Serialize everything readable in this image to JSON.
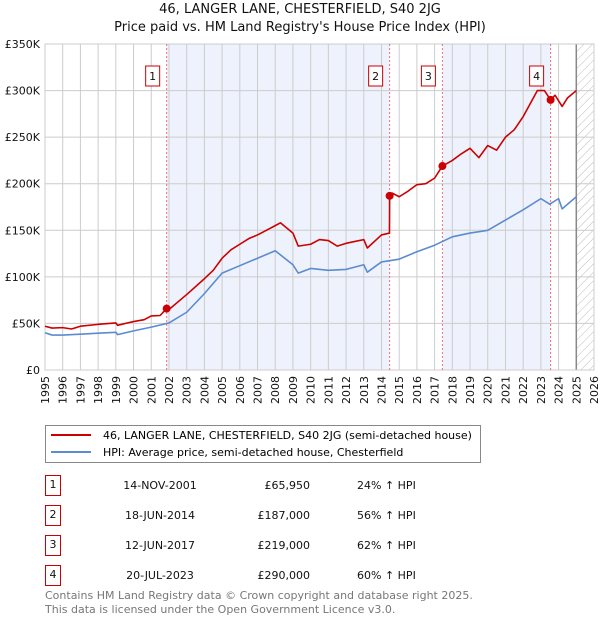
{
  "title_line1": "46, LANGER LANE, CHESTERFIELD, S40 2JG",
  "title_line2": "Price paid vs. HM Land Registry's House Price Index (HPI)",
  "chart_data": {
    "type": "line",
    "xlim": [
      1995,
      2026
    ],
    "ylim": [
      0,
      350000
    ],
    "y_ticks": [
      0,
      50000,
      100000,
      150000,
      200000,
      250000,
      300000,
      350000
    ],
    "y_tick_labels": [
      "£0",
      "£50K",
      "£100K",
      "£150K",
      "£200K",
      "£250K",
      "£300K",
      "£350K"
    ],
    "x_ticks": [
      "1995",
      "1996",
      "1997",
      "1998",
      "1999",
      "2000",
      "2001",
      "2002",
      "2003",
      "2004",
      "2005",
      "2006",
      "2007",
      "2008",
      "2009",
      "2010",
      "2011",
      "2012",
      "2013",
      "2014",
      "2015",
      "2016",
      "2017",
      "2018",
      "2019",
      "2020",
      "2021",
      "2022",
      "2023",
      "2024",
      "2025",
      "2026"
    ],
    "grid": true,
    "future_hatch_from": 2025,
    "colors": {
      "property": "#cc0000",
      "hpi": "#5b8bd0",
      "shade": "#eef2fc"
    },
    "series": [
      {
        "name": "46, LANGER LANE, CHESTERFIELD, S40 2JG (semi-detached house)",
        "x": [
          1995,
          1995.4,
          1996,
          1996.5,
          1997,
          1998,
          1999,
          1999.1,
          2000,
          2000.6,
          2001,
          2001.5,
          2001.87,
          2002,
          2003,
          2004,
          2004.5,
          2005,
          2005.5,
          2006,
          2006.5,
          2007,
          2007.5,
          2008,
          2008.3,
          2009,
          2009.3,
          2010,
          2010.5,
          2011,
          2011.5,
          2012,
          2012.5,
          2013,
          2013.2,
          2014,
          2014.45,
          2014.46,
          2014.6,
          2015,
          2015.5,
          2016,
          2016.5,
          2017,
          2017.44,
          2018,
          2018.5,
          2019,
          2019.5,
          2020,
          2020.5,
          2021,
          2021.5,
          2022,
          2022.8,
          2023.2,
          2023.55,
          2023.8,
          2024.2,
          2024.5,
          2025
        ],
        "values": [
          47000,
          45000,
          45500,
          44000,
          47000,
          49000,
          50500,
          48000,
          52000,
          54000,
          58000,
          58500,
          65950,
          65000,
          81000,
          98000,
          107000,
          120000,
          129000,
          135000,
          141000,
          145000,
          150000,
          155000,
          158000,
          147000,
          133000,
          135000,
          140000,
          139000,
          133000,
          136000,
          138000,
          140000,
          131000,
          145000,
          147000,
          187000,
          190000,
          186000,
          192000,
          199000,
          200000,
          206000,
          219000,
          225000,
          232000,
          238000,
          228000,
          241000,
          236000,
          250000,
          258000,
          272000,
          300000,
          300000,
          290000,
          295000,
          283000,
          292000,
          300000
        ]
      },
      {
        "name": "HPI: Average price, semi-detached house, Chesterfield",
        "x": [
          1995,
          1995.4,
          1996,
          1997,
          1998,
          1999,
          1999.1,
          2000,
          2001,
          2002,
          2003,
          2004,
          2005,
          2006,
          2007,
          2008,
          2009,
          2009.3,
          2010,
          2011,
          2012,
          2013,
          2013.2,
          2014,
          2015,
          2016,
          2017,
          2018,
          2019,
          2020,
          2021,
          2022,
          2023,
          2023.5,
          2024,
          2024.2,
          2025
        ],
        "values": [
          40000,
          37500,
          37500,
          38500,
          39500,
          40500,
          38000,
          42000,
          46000,
          50500,
          62000,
          82000,
          104000,
          112000,
          120000,
          128000,
          113000,
          104000,
          109000,
          107000,
          108000,
          113000,
          105000,
          116000,
          119000,
          127000,
          134000,
          143000,
          147000,
          150000,
          161000,
          172000,
          184000,
          178000,
          184000,
          173000,
          186000
        ]
      }
    ],
    "sales": [
      {
        "label": "1",
        "x": 2001.87,
        "value": 65950
      },
      {
        "label": "2",
        "x": 2014.46,
        "value": 187000
      },
      {
        "label": "3",
        "x": 2017.44,
        "value": 219000
      },
      {
        "label": "4",
        "x": 2023.55,
        "value": 290000
      }
    ]
  },
  "legend": {
    "property": "46, LANGER LANE, CHESTERFIELD, S40 2JG (semi-detached house)",
    "hpi": "HPI: Average price, semi-detached house, Chesterfield"
  },
  "transactions": [
    {
      "num": "1",
      "date": "14-NOV-2001",
      "price": "£65,950",
      "hpi": "24% ↑ HPI"
    },
    {
      "num": "2",
      "date": "18-JUN-2014",
      "price": "£187,000",
      "hpi": "56% ↑ HPI"
    },
    {
      "num": "3",
      "date": "12-JUN-2017",
      "price": "£219,000",
      "hpi": "62% ↑ HPI"
    },
    {
      "num": "4",
      "date": "20-JUL-2023",
      "price": "£290,000",
      "hpi": "60% ↑ HPI"
    }
  ],
  "footer_line1": "Contains HM Land Registry data © Crown copyright and database right 2025.",
  "footer_line2": "This data is licensed under the Open Government Licence v3.0."
}
